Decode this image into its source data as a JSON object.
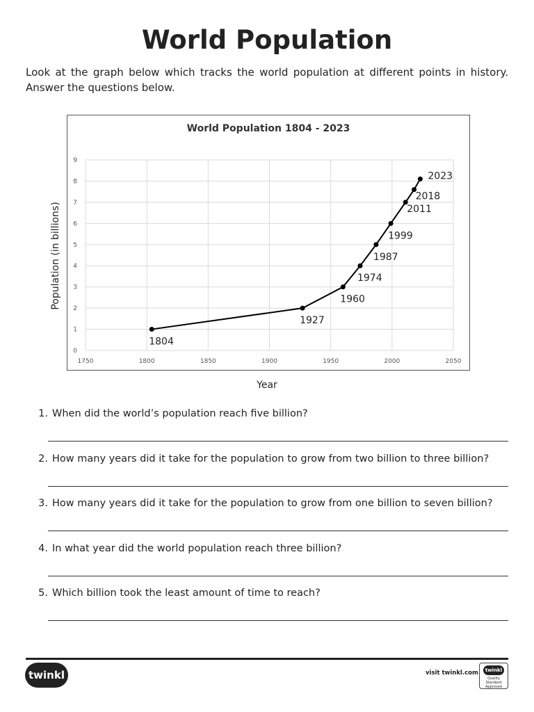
{
  "page": {
    "title": "World Population",
    "intro": "Look at the graph below which tracks the world population at different points in history. Answer the questions below."
  },
  "chart_data": {
    "type": "line",
    "title": "World Population 1804 - 2023",
    "xlabel": "Year",
    "ylabel": "Population (in billions)",
    "xlim": [
      1750,
      2050
    ],
    "ylim": [
      0,
      9
    ],
    "xticks": [
      1750,
      1800,
      1850,
      1900,
      1950,
      2000,
      2050
    ],
    "yticks": [
      0,
      1,
      2,
      3,
      4,
      5,
      6,
      7,
      8,
      9
    ],
    "grid": true,
    "legend": "none",
    "points": [
      {
        "x": 1804,
        "y": 1,
        "label": "1804"
      },
      {
        "x": 1927,
        "y": 2,
        "label": "1927"
      },
      {
        "x": 1960,
        "y": 3,
        "label": "1960"
      },
      {
        "x": 1974,
        "y": 4,
        "label": "1974"
      },
      {
        "x": 1987,
        "y": 5,
        "label": "1987"
      },
      {
        "x": 1999,
        "y": 6,
        "label": "1999"
      },
      {
        "x": 2011,
        "y": 7,
        "label": "2011"
      },
      {
        "x": 2018,
        "y": 7.6,
        "label": "2018"
      },
      {
        "x": 2023,
        "y": 8.1,
        "label": "2023"
      }
    ],
    "line_color": "#000000",
    "grid_color": "#d9d9d9"
  },
  "questions": [
    {
      "num": "1.",
      "text": "When did the world’s population reach five billion?"
    },
    {
      "num": "2.",
      "text": "How many years did it take for the population to grow from two billion to three billion?"
    },
    {
      "num": "3.",
      "text": "How many years did it take for the population to grow from one billion to seven billion?"
    },
    {
      "num": "4.",
      "text": "In what year did the world population reach three billion?"
    },
    {
      "num": "5.",
      "text": "Which billion took the least amount of time to reach?"
    }
  ],
  "footer": {
    "logo": "twinkl",
    "visit": "visit twinkl.com",
    "badge_logo": "twinkl",
    "badge_text": "Quality Standard Approved"
  }
}
